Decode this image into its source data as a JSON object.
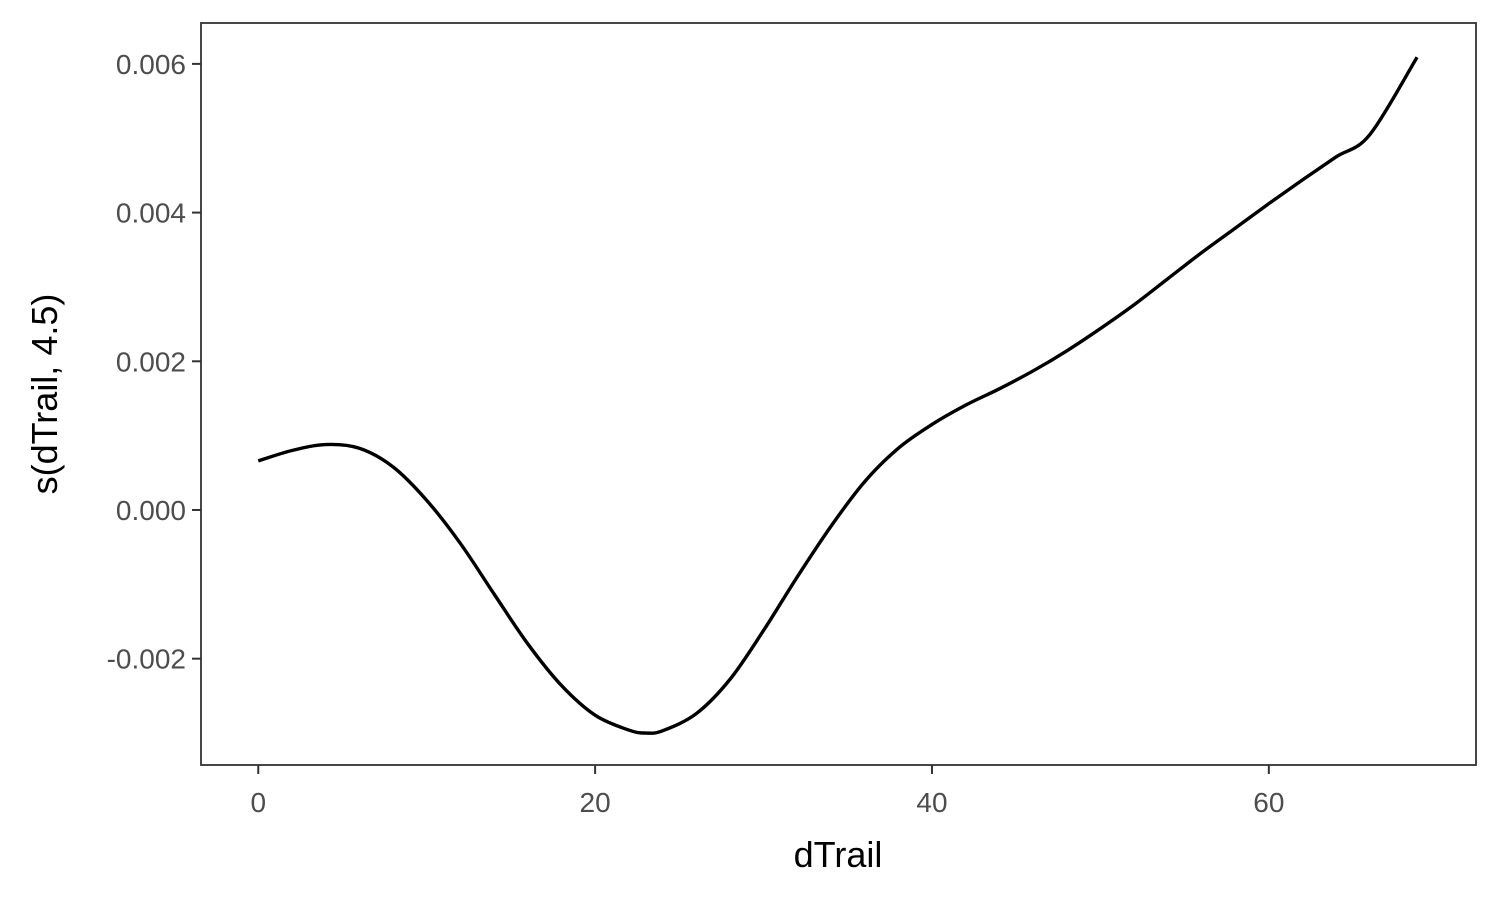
{
  "chart_data": {
    "type": "line",
    "title": "",
    "xlabel": "dTrail",
    "ylabel": "s(dTrail, 4.5)",
    "xlim": [
      -3.4,
      72.3
    ],
    "ylim": [
      -0.00343,
      0.00655
    ],
    "x_ticks": [
      0,
      20,
      40,
      60
    ],
    "x_tick_labels": [
      "0",
      "20",
      "40",
      "60"
    ],
    "y_ticks": [
      -0.002,
      0.0,
      0.002,
      0.004,
      0.006
    ],
    "y_tick_labels": [
      "-0.002",
      "0.000",
      "0.002",
      "0.004",
      "0.006"
    ],
    "grid": false,
    "series": [
      {
        "color": "#000000",
        "x": [
          0,
          2,
          4,
          6,
          8,
          10,
          12,
          14,
          16,
          18,
          20,
          22,
          23,
          24,
          26,
          28,
          30,
          32,
          34,
          36,
          38,
          40,
          42,
          44,
          46,
          48,
          50,
          52,
          54,
          56,
          58,
          60,
          62,
          64,
          66,
          68.8
        ],
        "y": [
          0.00066,
          0.0008,
          0.00088,
          0.00083,
          0.00058,
          0.00013,
          -0.00045,
          -0.00113,
          -0.0018,
          -0.00236,
          -0.00276,
          -0.00296,
          -0.003,
          -0.00297,
          -0.00274,
          -0.00228,
          -0.00162,
          -0.0009,
          -0.00022,
          0.00038,
          0.00083,
          0.00115,
          0.00141,
          0.00163,
          0.00187,
          0.00214,
          0.00244,
          0.00276,
          0.00311,
          0.00346,
          0.00379,
          0.00412,
          0.00444,
          0.00475,
          0.00505,
          0.00609
        ]
      }
    ]
  }
}
